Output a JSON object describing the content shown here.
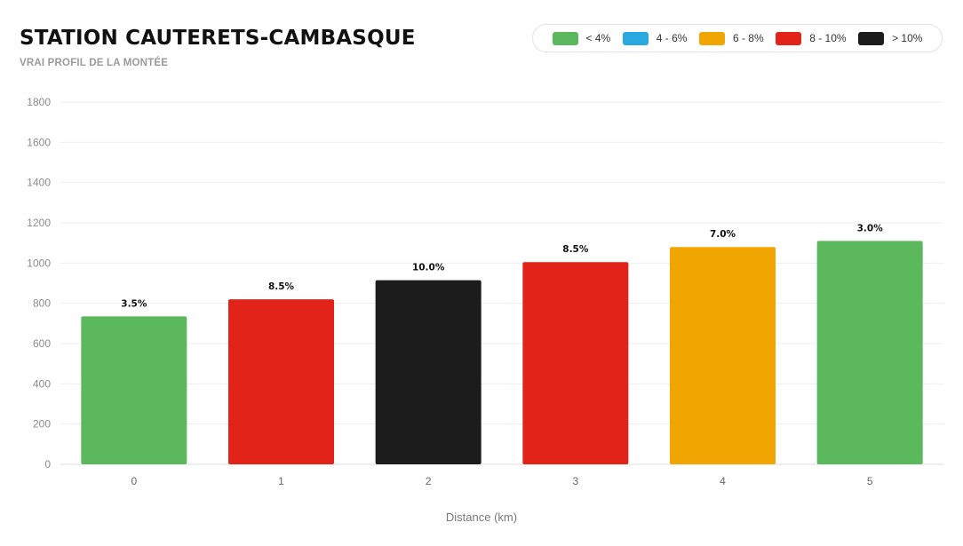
{
  "header": {
    "title": "STATION CAUTERETS-CAMBASQUE",
    "subtitle": "VRAI PROFIL DE LA MONTÉE"
  },
  "legend": [
    {
      "label": "< 4%",
      "color": "#5cb85c"
    },
    {
      "label": "4 - 6%",
      "color": "#2aa9e0"
    },
    {
      "label": "6 - 8%",
      "color": "#f0a500"
    },
    {
      "label": "8 - 10%",
      "color": "#e2231a"
    },
    {
      "label": "> 10%",
      "color": "#1c1c1c"
    }
  ],
  "chart_data": {
    "type": "bar",
    "categories": [
      "0",
      "1",
      "2",
      "3",
      "4",
      "5"
    ],
    "values": [
      735,
      820,
      915,
      1005,
      1080,
      1110
    ],
    "data_labels": [
      "3.5%",
      "8.5%",
      "10.0%",
      "8.5%",
      "7.0%",
      "3.0%"
    ],
    "colors": [
      "#5cb85c",
      "#e2231a",
      "#1c1c1c",
      "#e2231a",
      "#f0a500",
      "#5cb85c"
    ],
    "title": "STATION CAUTERETS-CAMBASQUE",
    "subtitle": "VRAI PROFIL DE LA MONTÉE",
    "xlabel": "Distance (km)",
    "ylabel": "",
    "ylim": [
      0,
      1800
    ],
    "yticks": [
      0,
      200,
      400,
      600,
      800,
      1000,
      1200,
      1400,
      1600,
      1800
    ],
    "grid": true,
    "legend_position": "top-right"
  }
}
